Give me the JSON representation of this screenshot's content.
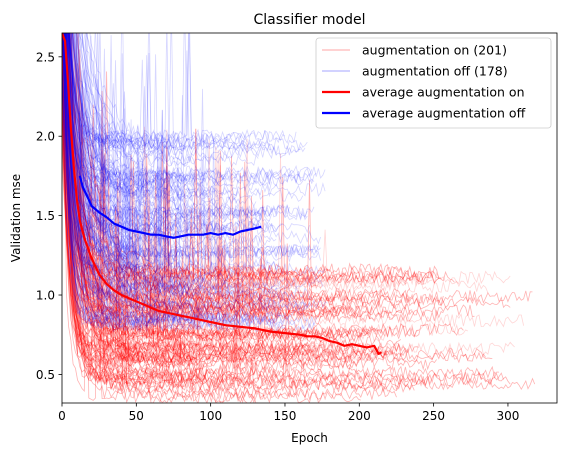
{
  "chart_data": {
    "type": "line",
    "title": "Classifier model",
    "xlabel": "Epoch",
    "ylabel": "Validation mse",
    "xlim": [
      0,
      333
    ],
    "ylim": [
      0.32,
      2.65
    ],
    "x_ticks": [
      0,
      50,
      100,
      150,
      200,
      250,
      300
    ],
    "y_ticks": [
      0.5,
      1.0,
      1.5,
      2.0,
      2.5
    ],
    "x_tick_labels": [
      "0",
      "50",
      "100",
      "150",
      "200",
      "250",
      "300"
    ],
    "y_tick_labels": [
      "0.5",
      "1.0",
      "1.5",
      "2.0",
      "2.5"
    ],
    "grid": false,
    "legend_position": "top-right",
    "legend": [
      {
        "label": "augmentation on (201)",
        "color": "#ff0000",
        "style": "thin"
      },
      {
        "label": "augmentation off (178)",
        "color": "#0000ff",
        "style": "thin"
      },
      {
        "label": "average augmentation on",
        "color": "#ff0000",
        "style": "thick"
      },
      {
        "label": "average augmentation off",
        "color": "#0000ff",
        "style": "thick"
      }
    ],
    "series": [
      {
        "name": "average augmentation on",
        "color": "#ff0000",
        "x": [
          0,
          2,
          4,
          6,
          8,
          10,
          12,
          15,
          18,
          20,
          25,
          30,
          35,
          40,
          45,
          50,
          55,
          60,
          65,
          70,
          75,
          80,
          85,
          90,
          95,
          100,
          110,
          120,
          130,
          140,
          150,
          160,
          165,
          170,
          175,
          180,
          185,
          190,
          195,
          200,
          205,
          210,
          213,
          215
        ],
        "y": [
          2.65,
          2.6,
          2.35,
          2.05,
          1.8,
          1.6,
          1.47,
          1.36,
          1.28,
          1.23,
          1.13,
          1.07,
          1.03,
          1.0,
          0.98,
          0.96,
          0.94,
          0.92,
          0.9,
          0.89,
          0.88,
          0.87,
          0.86,
          0.85,
          0.84,
          0.83,
          0.81,
          0.8,
          0.79,
          0.77,
          0.76,
          0.75,
          0.74,
          0.74,
          0.73,
          0.71,
          0.7,
          0.68,
          0.69,
          0.68,
          0.67,
          0.68,
          0.63,
          0.64
        ]
      },
      {
        "name": "average augmentation off",
        "color": "#0000ff",
        "x": [
          12,
          14,
          16,
          18,
          20,
          25,
          30,
          35,
          40,
          45,
          50,
          55,
          60,
          65,
          70,
          75,
          80,
          85,
          90,
          95,
          100,
          105,
          110,
          115,
          120,
          125,
          130,
          134
        ],
        "y": [
          1.75,
          1.68,
          1.64,
          1.6,
          1.56,
          1.52,
          1.49,
          1.45,
          1.43,
          1.41,
          1.4,
          1.39,
          1.38,
          1.38,
          1.37,
          1.36,
          1.37,
          1.38,
          1.38,
          1.38,
          1.39,
          1.38,
          1.39,
          1.38,
          1.4,
          1.41,
          1.42,
          1.43
        ]
      }
    ]
  }
}
